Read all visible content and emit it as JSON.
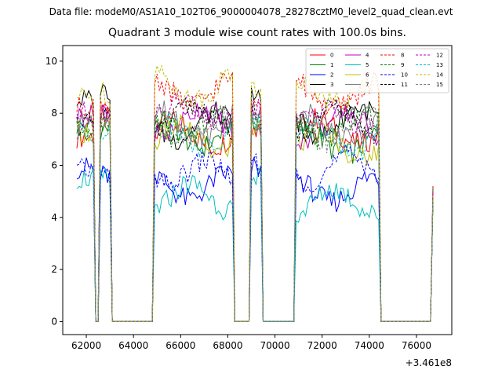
{
  "figure": {
    "suptitle": "Data file: modeM0/AS1A10_102T06_9000004078_28278cztM0_level2_quad_clean.evt",
    "title": "Quadrant 3 module wise count rates with 100.0s bins."
  },
  "chart_data": {
    "type": "line",
    "title": "Quadrant 3 module wise count rates with 100.0s bins.",
    "xlabel": "",
    "ylabel": "",
    "x_offset_label": "+3.461e8",
    "xlim": [
      61000,
      77500
    ],
    "ylim": [
      -0.5,
      10.6
    ],
    "xticks": [
      62000,
      64000,
      66000,
      68000,
      70000,
      72000,
      74000,
      76000
    ],
    "xtick_labels": [
      "62000",
      "64000",
      "66000",
      "68000",
      "70000",
      "72000",
      "74000",
      "76000"
    ],
    "yticks": [
      0,
      2,
      4,
      6,
      8,
      10
    ],
    "ytick_labels": [
      "0",
      "2",
      "4",
      "6",
      "8",
      "10"
    ],
    "grid": false,
    "legend_position": "top-right",
    "bin_width": 100,
    "segments": [
      {
        "start": 61600,
        "end": 62300
      },
      {
        "start": 62600,
        "end": 63000
      },
      {
        "start": 64900,
        "end": 68200
      },
      {
        "start": 69000,
        "end": 69400
      },
      {
        "start": 70900,
        "end": 74400
      },
      {
        "start": 76700,
        "end": 76700
      }
    ],
    "series": [
      {
        "name": "0",
        "color": "#ff0000",
        "dash": "solid",
        "levels": [
          7.1,
          7.8,
          7.2,
          7.4,
          7.3,
          5.2
        ]
      },
      {
        "name": "1",
        "color": "#008000",
        "dash": "solid",
        "levels": [
          7.5,
          7.4,
          7.2,
          7.6,
          6.9,
          5.1
        ]
      },
      {
        "name": "2",
        "color": "#0000ff",
        "dash": "solid",
        "levels": [
          5.9,
          5.6,
          5.2,
          5.9,
          5.1,
          4.9
        ]
      },
      {
        "name": "3",
        "color": "#000000",
        "dash": "solid",
        "levels": [
          8.5,
          8.9,
          7.5,
          8.6,
          7.7,
          4.8
        ]
      },
      {
        "name": "4",
        "color": "#bf00bf",
        "dash": "solid",
        "levels": [
          7.9,
          8.1,
          7.7,
          8.2,
          7.5,
          5.0
        ]
      },
      {
        "name": "5",
        "color": "#00bfbf",
        "dash": "solid",
        "levels": [
          5.5,
          5.5,
          4.8,
          5.5,
          4.6,
          4.7
        ]
      },
      {
        "name": "6",
        "color": "#bfbf00",
        "dash": "solid",
        "levels": [
          7.3,
          7.5,
          7.0,
          7.4,
          6.8,
          4.9
        ]
      },
      {
        "name": "7",
        "color": "#7f7f7f",
        "dash": "solid",
        "levels": [
          7.7,
          7.9,
          7.6,
          7.8,
          7.5,
          4.8
        ]
      },
      {
        "name": "8",
        "color": "#ff0000",
        "dash": "dashed",
        "levels": [
          8.2,
          8.4,
          8.8,
          8.7,
          8.7,
          4.9
        ]
      },
      {
        "name": "9",
        "color": "#008000",
        "dash": "dashed",
        "levels": [
          7.3,
          7.5,
          7.4,
          7.7,
          7.5,
          4.8
        ]
      },
      {
        "name": "10",
        "color": "#0000ff",
        "dash": "dashed",
        "levels": [
          5.8,
          5.6,
          5.7,
          6.0,
          5.9,
          4.8
        ]
      },
      {
        "name": "11",
        "color": "#000000",
        "dash": "dashed",
        "levels": [
          7.6,
          7.9,
          7.8,
          8.0,
          7.7,
          4.8
        ]
      },
      {
        "name": "12",
        "color": "#bf00bf",
        "dash": "dashed",
        "levels": [
          8.0,
          8.1,
          8.0,
          8.1,
          7.8,
          4.9
        ]
      },
      {
        "name": "13",
        "color": "#00bfbf",
        "dash": "dashed",
        "levels": [
          7.2,
          7.4,
          7.1,
          7.5,
          7.0,
          4.7
        ]
      },
      {
        "name": "14",
        "color": "#bfbf00",
        "dash": "dashed",
        "levels": [
          8.6,
          8.8,
          9.0,
          8.9,
          8.9,
          4.9
        ]
      },
      {
        "name": "15",
        "color": "#7f7f7f",
        "dash": "dashed",
        "levels": [
          7.6,
          7.7,
          7.5,
          7.7,
          7.4,
          4.8
        ]
      }
    ]
  }
}
